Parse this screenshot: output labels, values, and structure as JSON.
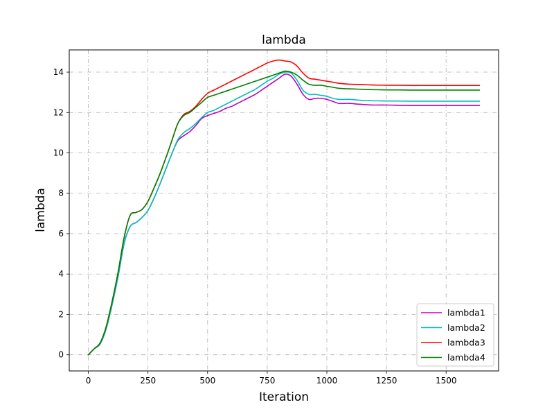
{
  "chart_data": {
    "type": "line",
    "title": "lambda",
    "xlabel": "Iteration",
    "ylabel": "lambda",
    "xlim": [
      -80,
      1720
    ],
    "ylim": [
      -0.8,
      15.1
    ],
    "xticks": [
      0,
      250,
      500,
      750,
      1000,
      1250,
      1500
    ],
    "yticks": [
      0,
      2,
      4,
      6,
      8,
      10,
      12,
      14
    ],
    "grid": true,
    "grid_style": "dashdot",
    "legend_position": "lower-right",
    "series": [
      {
        "name": "lambda1",
        "color": "#bf00bf",
        "x": [
          0,
          25,
          50,
          75,
          100,
          125,
          150,
          175,
          200,
          225,
          250,
          275,
          300,
          325,
          350,
          375,
          400,
          425,
          450,
          475,
          500,
          525,
          550,
          575,
          600,
          625,
          650,
          675,
          700,
          725,
          750,
          775,
          800,
          825,
          850,
          875,
          900,
          925,
          950,
          975,
          1000,
          1025,
          1050,
          1075,
          1100,
          1125,
          1150,
          1175,
          1200,
          1250,
          1300,
          1350,
          1400,
          1450,
          1500,
          1550,
          1600,
          1640
        ],
        "values": [
          0.0,
          0.3,
          0.55,
          1.3,
          2.5,
          3.9,
          5.5,
          6.35,
          6.55,
          6.8,
          7.15,
          7.75,
          8.45,
          9.2,
          9.95,
          10.6,
          10.85,
          11.05,
          11.35,
          11.7,
          11.85,
          11.95,
          12.05,
          12.2,
          12.3,
          12.45,
          12.6,
          12.75,
          12.9,
          13.1,
          13.3,
          13.5,
          13.7,
          13.9,
          13.8,
          13.4,
          12.9,
          12.65,
          12.7,
          12.7,
          12.65,
          12.55,
          12.45,
          12.45,
          12.45,
          12.42,
          12.4,
          12.38,
          12.37,
          12.37,
          12.36,
          12.35,
          12.35,
          12.35,
          12.35,
          12.35,
          12.35,
          12.35
        ]
      },
      {
        "name": "lambda2",
        "color": "#00bfbf",
        "x": [
          0,
          25,
          50,
          75,
          100,
          125,
          150,
          175,
          200,
          225,
          250,
          275,
          300,
          325,
          350,
          375,
          400,
          425,
          450,
          475,
          500,
          525,
          550,
          575,
          600,
          625,
          650,
          675,
          700,
          725,
          750,
          775,
          800,
          825,
          850,
          875,
          900,
          925,
          950,
          975,
          1000,
          1025,
          1050,
          1075,
          1100,
          1125,
          1150,
          1175,
          1200,
          1250,
          1300,
          1350,
          1400,
          1450,
          1500,
          1550,
          1600,
          1640
        ],
        "values": [
          0.0,
          0.3,
          0.55,
          1.3,
          2.5,
          3.9,
          5.5,
          6.35,
          6.55,
          6.8,
          7.15,
          7.75,
          8.45,
          9.2,
          9.95,
          10.65,
          11.0,
          11.2,
          11.45,
          11.75,
          12.0,
          12.1,
          12.25,
          12.4,
          12.55,
          12.7,
          12.85,
          13.0,
          13.15,
          13.35,
          13.55,
          13.7,
          13.9,
          14.0,
          13.95,
          13.6,
          13.1,
          12.9,
          12.9,
          12.85,
          12.8,
          12.7,
          12.65,
          12.65,
          12.65,
          12.62,
          12.6,
          12.59,
          12.58,
          12.57,
          12.57,
          12.56,
          12.56,
          12.56,
          12.56,
          12.56,
          12.56,
          12.56
        ]
      },
      {
        "name": "lambda3",
        "color": "#ff0000",
        "x": [
          0,
          25,
          50,
          75,
          100,
          125,
          150,
          175,
          200,
          225,
          250,
          275,
          300,
          325,
          350,
          375,
          400,
          425,
          450,
          475,
          500,
          525,
          550,
          575,
          600,
          625,
          650,
          675,
          700,
          725,
          750,
          775,
          800,
          825,
          850,
          875,
          900,
          925,
          950,
          975,
          1000,
          1025,
          1050,
          1075,
          1100,
          1125,
          1150,
          1175,
          1200,
          1250,
          1300,
          1350,
          1400,
          1450,
          1500,
          1550,
          1600,
          1640
        ],
        "values": [
          0.0,
          0.3,
          0.6,
          1.4,
          2.65,
          4.1,
          5.8,
          6.9,
          7.05,
          7.2,
          7.6,
          8.25,
          8.95,
          9.75,
          10.6,
          11.45,
          11.9,
          12.05,
          12.3,
          12.65,
          12.95,
          13.1,
          13.25,
          13.4,
          13.55,
          13.7,
          13.85,
          14.0,
          14.15,
          14.3,
          14.45,
          14.55,
          14.6,
          14.55,
          14.5,
          14.3,
          13.95,
          13.7,
          13.65,
          13.6,
          13.55,
          13.5,
          13.45,
          13.42,
          13.4,
          13.39,
          13.38,
          13.37,
          13.36,
          13.35,
          13.35,
          13.34,
          13.34,
          13.34,
          13.34,
          13.34,
          13.34,
          13.34
        ]
      },
      {
        "name": "lambda4",
        "color": "#008000",
        "x": [
          0,
          25,
          50,
          75,
          100,
          125,
          150,
          175,
          200,
          225,
          250,
          275,
          300,
          325,
          350,
          375,
          400,
          425,
          450,
          475,
          500,
          525,
          550,
          575,
          600,
          625,
          650,
          675,
          700,
          725,
          750,
          775,
          800,
          825,
          850,
          875,
          900,
          925,
          950,
          975,
          1000,
          1025,
          1050,
          1075,
          1100,
          1125,
          1150,
          1175,
          1200,
          1250,
          1300,
          1350,
          1400,
          1450,
          1500,
          1550,
          1600,
          1640
        ],
        "values": [
          0.0,
          0.3,
          0.6,
          1.4,
          2.65,
          4.1,
          5.8,
          6.9,
          7.05,
          7.2,
          7.6,
          8.25,
          8.95,
          9.75,
          10.6,
          11.45,
          11.85,
          12.0,
          12.25,
          12.5,
          12.75,
          12.85,
          12.95,
          13.05,
          13.15,
          13.25,
          13.35,
          13.45,
          13.55,
          13.65,
          13.75,
          13.85,
          13.95,
          14.05,
          14.0,
          13.85,
          13.6,
          13.4,
          13.35,
          13.35,
          13.3,
          13.25,
          13.2,
          13.18,
          13.17,
          13.16,
          13.15,
          13.14,
          13.13,
          13.12,
          13.12,
          13.11,
          13.11,
          13.11,
          13.11,
          13.11,
          13.11,
          13.11
        ]
      }
    ]
  }
}
